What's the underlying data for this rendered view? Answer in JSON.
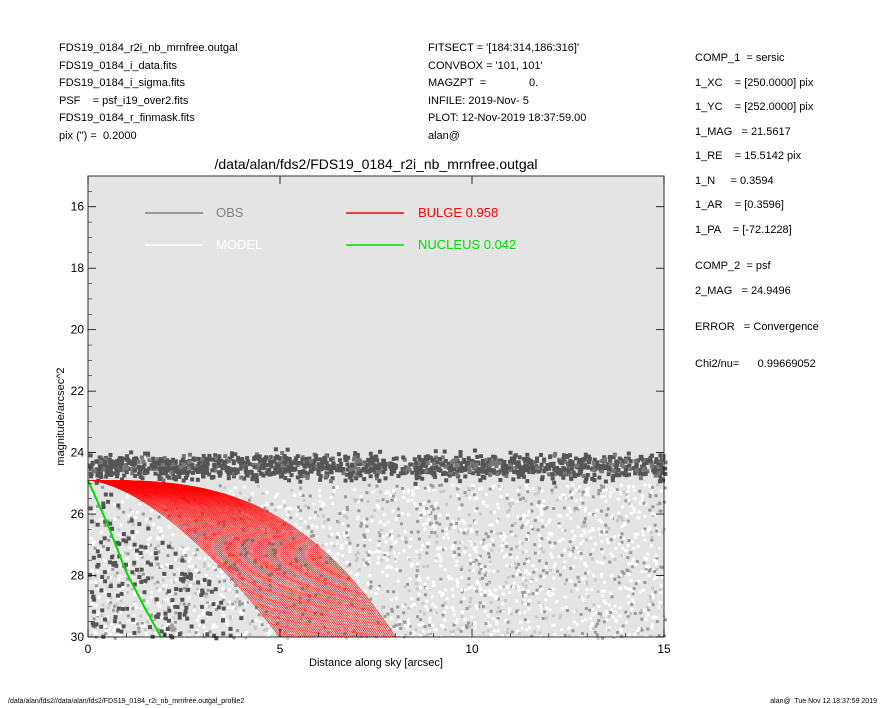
{
  "header_left": [
    "FDS19_0184_r2i_nb_mrnfree.outgal",
    "FDS19_0184_i_data.fits",
    "FDS19_0184_i_sigma.fits",
    "PSF    = psf_i19_over2.fits",
    "FDS19_0184_r_finmask.fits",
    "pix (\") =  0.2000"
  ],
  "header_mid": [
    "FITSECT = '[184:314,186:316]'",
    "CONVBOX = '101, 101'",
    "MAGZPT  =              0.",
    "INFILE: 2019-Nov- 5",
    "PLOT: 12-Nov-2019 18:37:59.00",
    "alan@"
  ],
  "comp1": [
    "COMP_1  = sersic",
    "1_XC    = [250.0000] pix",
    "1_YC    = [252.0000] pix",
    "1_MAG   = 21.5617",
    "1_RE    = 15.5142 pix",
    "1_N     = 0.3594",
    "1_AR    = [0.3596]",
    "1_PA    = [-72.1228]"
  ],
  "comp2": [
    "COMP_2  = psf",
    "2_MAG   = 24.9496"
  ],
  "error_line": "ERROR   = Convergence",
  "chi_line": "Chi2/nu=      0.99669052",
  "footer_left": "/data/alan/fds2//data/alan/fds2/FDS19_0184_r2i_nb_mrnfree.outgal_profile2",
  "footer_right": "alan@  Tue Nov 12 18:37:59 2019",
  "colors": {
    "obs": "#808080",
    "model": "#ffffff",
    "bulge": "#ff0000",
    "nucleus": "#00dd00",
    "plot_bg": "#e4e4e4",
    "obs_points": "#555555",
    "noise_points": "#9a9a9a"
  },
  "chart_data": {
    "type": "scatter",
    "title": "/data/alan/fds2/FDS19_0184_r2i_nb_mrnfree.outgal",
    "xlabel": "Distance along sky [arcsec]",
    "ylabel": "magnitude/arcsec^2",
    "xlim": [
      0,
      15
    ],
    "ylim": [
      30,
      15
    ],
    "y_inverted": true,
    "x_ticks": [
      0,
      5,
      10,
      15
    ],
    "y_ticks": [
      16,
      18,
      20,
      22,
      24,
      26,
      28,
      30
    ],
    "grid": false,
    "legend_position": "top-left",
    "legend": [
      {
        "label": "OBS",
        "value": "",
        "color": "#808080"
      },
      {
        "label": "BULGE",
        "value": "0.958",
        "color": "#ff0000"
      },
      {
        "label": "MODEL",
        "value": "",
        "color": "#ffffff"
      },
      {
        "label": "NUCLEUS",
        "value": "0.042",
        "color": "#00dd00"
      }
    ],
    "series": [
      {
        "name": "OBS",
        "kind": "scatter-band",
        "x_range": [
          0,
          15
        ],
        "y_center": 24.4,
        "y_spread": 0.25,
        "noise_y_range": [
          25,
          30
        ]
      },
      {
        "name": "BULGE",
        "kind": "line-family",
        "start": [
          0,
          24.9
        ],
        "end_near_axis_x": [
          5,
          8
        ],
        "end_y": 30
      },
      {
        "name": "NUCLEUS",
        "kind": "line",
        "x": [
          0,
          0.5,
          1.0,
          1.5,
          1.9
        ],
        "y": [
          24.9,
          26.3,
          27.9,
          29.1,
          30
        ]
      }
    ]
  }
}
